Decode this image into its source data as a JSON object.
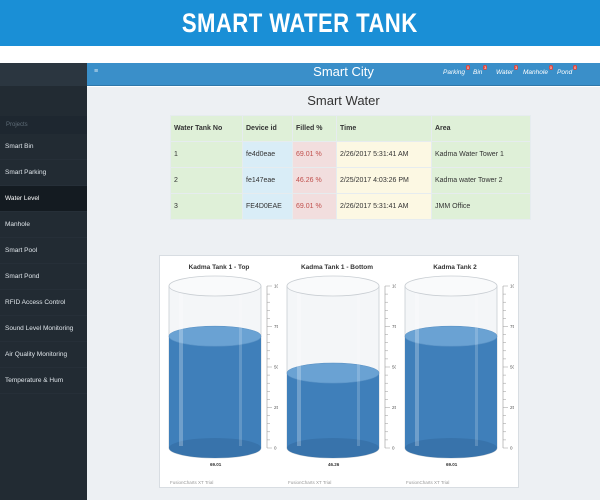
{
  "banner": {
    "title": "SMART WATER TANK"
  },
  "topbar": {
    "brand": "Smart City",
    "nav": [
      {
        "label": "Parking",
        "badge": "0"
      },
      {
        "label": "Bin",
        "badge": "3"
      },
      {
        "label": "Water",
        "badge": "3"
      },
      {
        "label": "Manhole",
        "badge": "0"
      },
      {
        "label": "Pond",
        "badge": "0"
      }
    ]
  },
  "sidebar": {
    "section": "Projects",
    "items": [
      "Smart Bin",
      "Smart Parking",
      "Water Level",
      "Manhole",
      "Smart Pool",
      "Smart Pond",
      "RFID Access Control",
      "Sound Level Monitoring",
      "Air Quality Monitoring",
      "Temperature & Hum"
    ],
    "active_index": 2
  },
  "main": {
    "title": "Smart Water",
    "table": {
      "headers": [
        "Water Tank No",
        "Device id",
        "Filled %",
        "Time",
        "Area"
      ],
      "rows": [
        [
          "1",
          "fe4d0eae",
          "69.01 %",
          "2/26/2017 5:31:41 AM",
          "Kadma Water Tower 1"
        ],
        [
          "2",
          "fe147eae",
          "46.26 %",
          "2/25/2017 4:03:26 PM",
          "Kadma water Tower 2"
        ],
        [
          "3",
          "FE4D0EAE",
          "69.01 %",
          "2/26/2017 5:31:41 AM",
          "JMM Office"
        ]
      ]
    }
  },
  "tanks": [
    {
      "title": "Kadma Tank 1 - Top",
      "value": 69.01,
      "value_label": "69.01",
      "credit": "FusionCharts XT Trial"
    },
    {
      "title": "Kadma Tank 1 - Bottom",
      "value": 46.26,
      "value_label": "46.26",
      "credit": "FusionCharts XT Trial"
    },
    {
      "title": "Kadma Tank 2",
      "value": 69.01,
      "value_label": "69.01",
      "credit": "FusionCharts XT Trial"
    }
  ],
  "scale": {
    "min": 0,
    "max": 100,
    "ticks": [
      "100",
      "75",
      "50",
      "25",
      "0"
    ]
  },
  "colors": {
    "banner": "#1a8fd6",
    "topbar": "#3a8fc9",
    "sidebar": "#222b33",
    "water": "#3f7fba",
    "fill_text": "#c0504d"
  }
}
